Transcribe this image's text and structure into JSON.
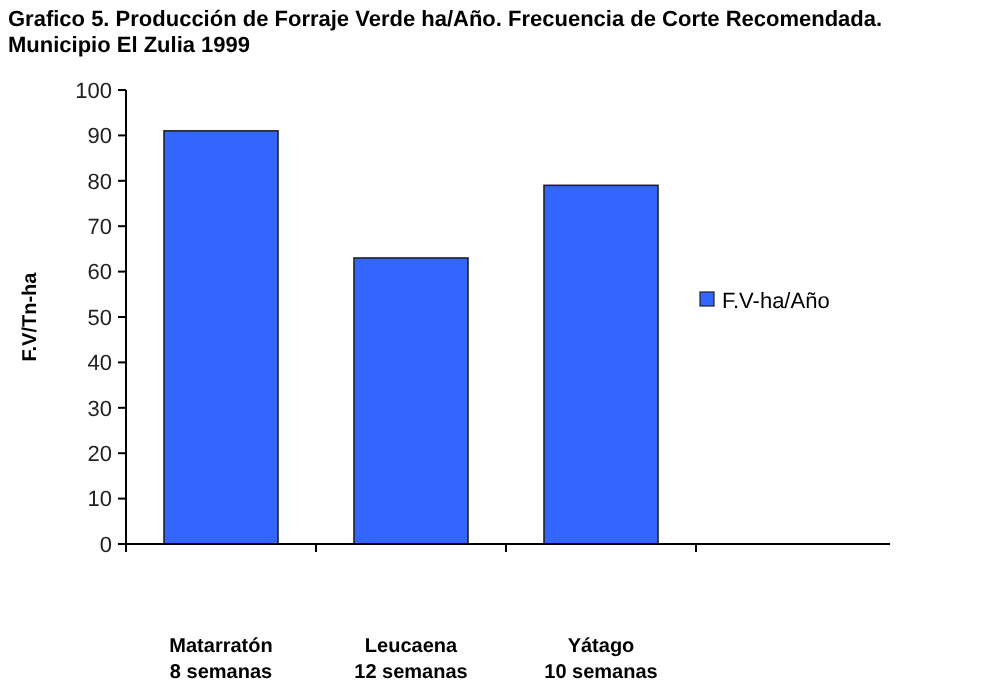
{
  "chart_data": {
    "type": "bar",
    "title": "Grafico 5. Producción de Forraje Verde ha/Año. Frecuencia de Corte Recomendada. Municipio El Zulia 1999",
    "ylabel": "F.V/Tn-ha",
    "categories": [
      "Matarratón\n8 semanas",
      "Leucaena\n12 semanas",
      "Yátago\n10 semanas"
    ],
    "series": [
      {
        "name": "F.V-ha/Año",
        "color": "#3366ff",
        "values": [
          91,
          63,
          79
        ]
      }
    ],
    "ylim": [
      0,
      100
    ],
    "yticks": [
      0,
      10,
      20,
      30,
      40,
      50,
      60,
      70,
      80,
      90,
      100
    ],
    "grid": false,
    "legend": "right"
  }
}
